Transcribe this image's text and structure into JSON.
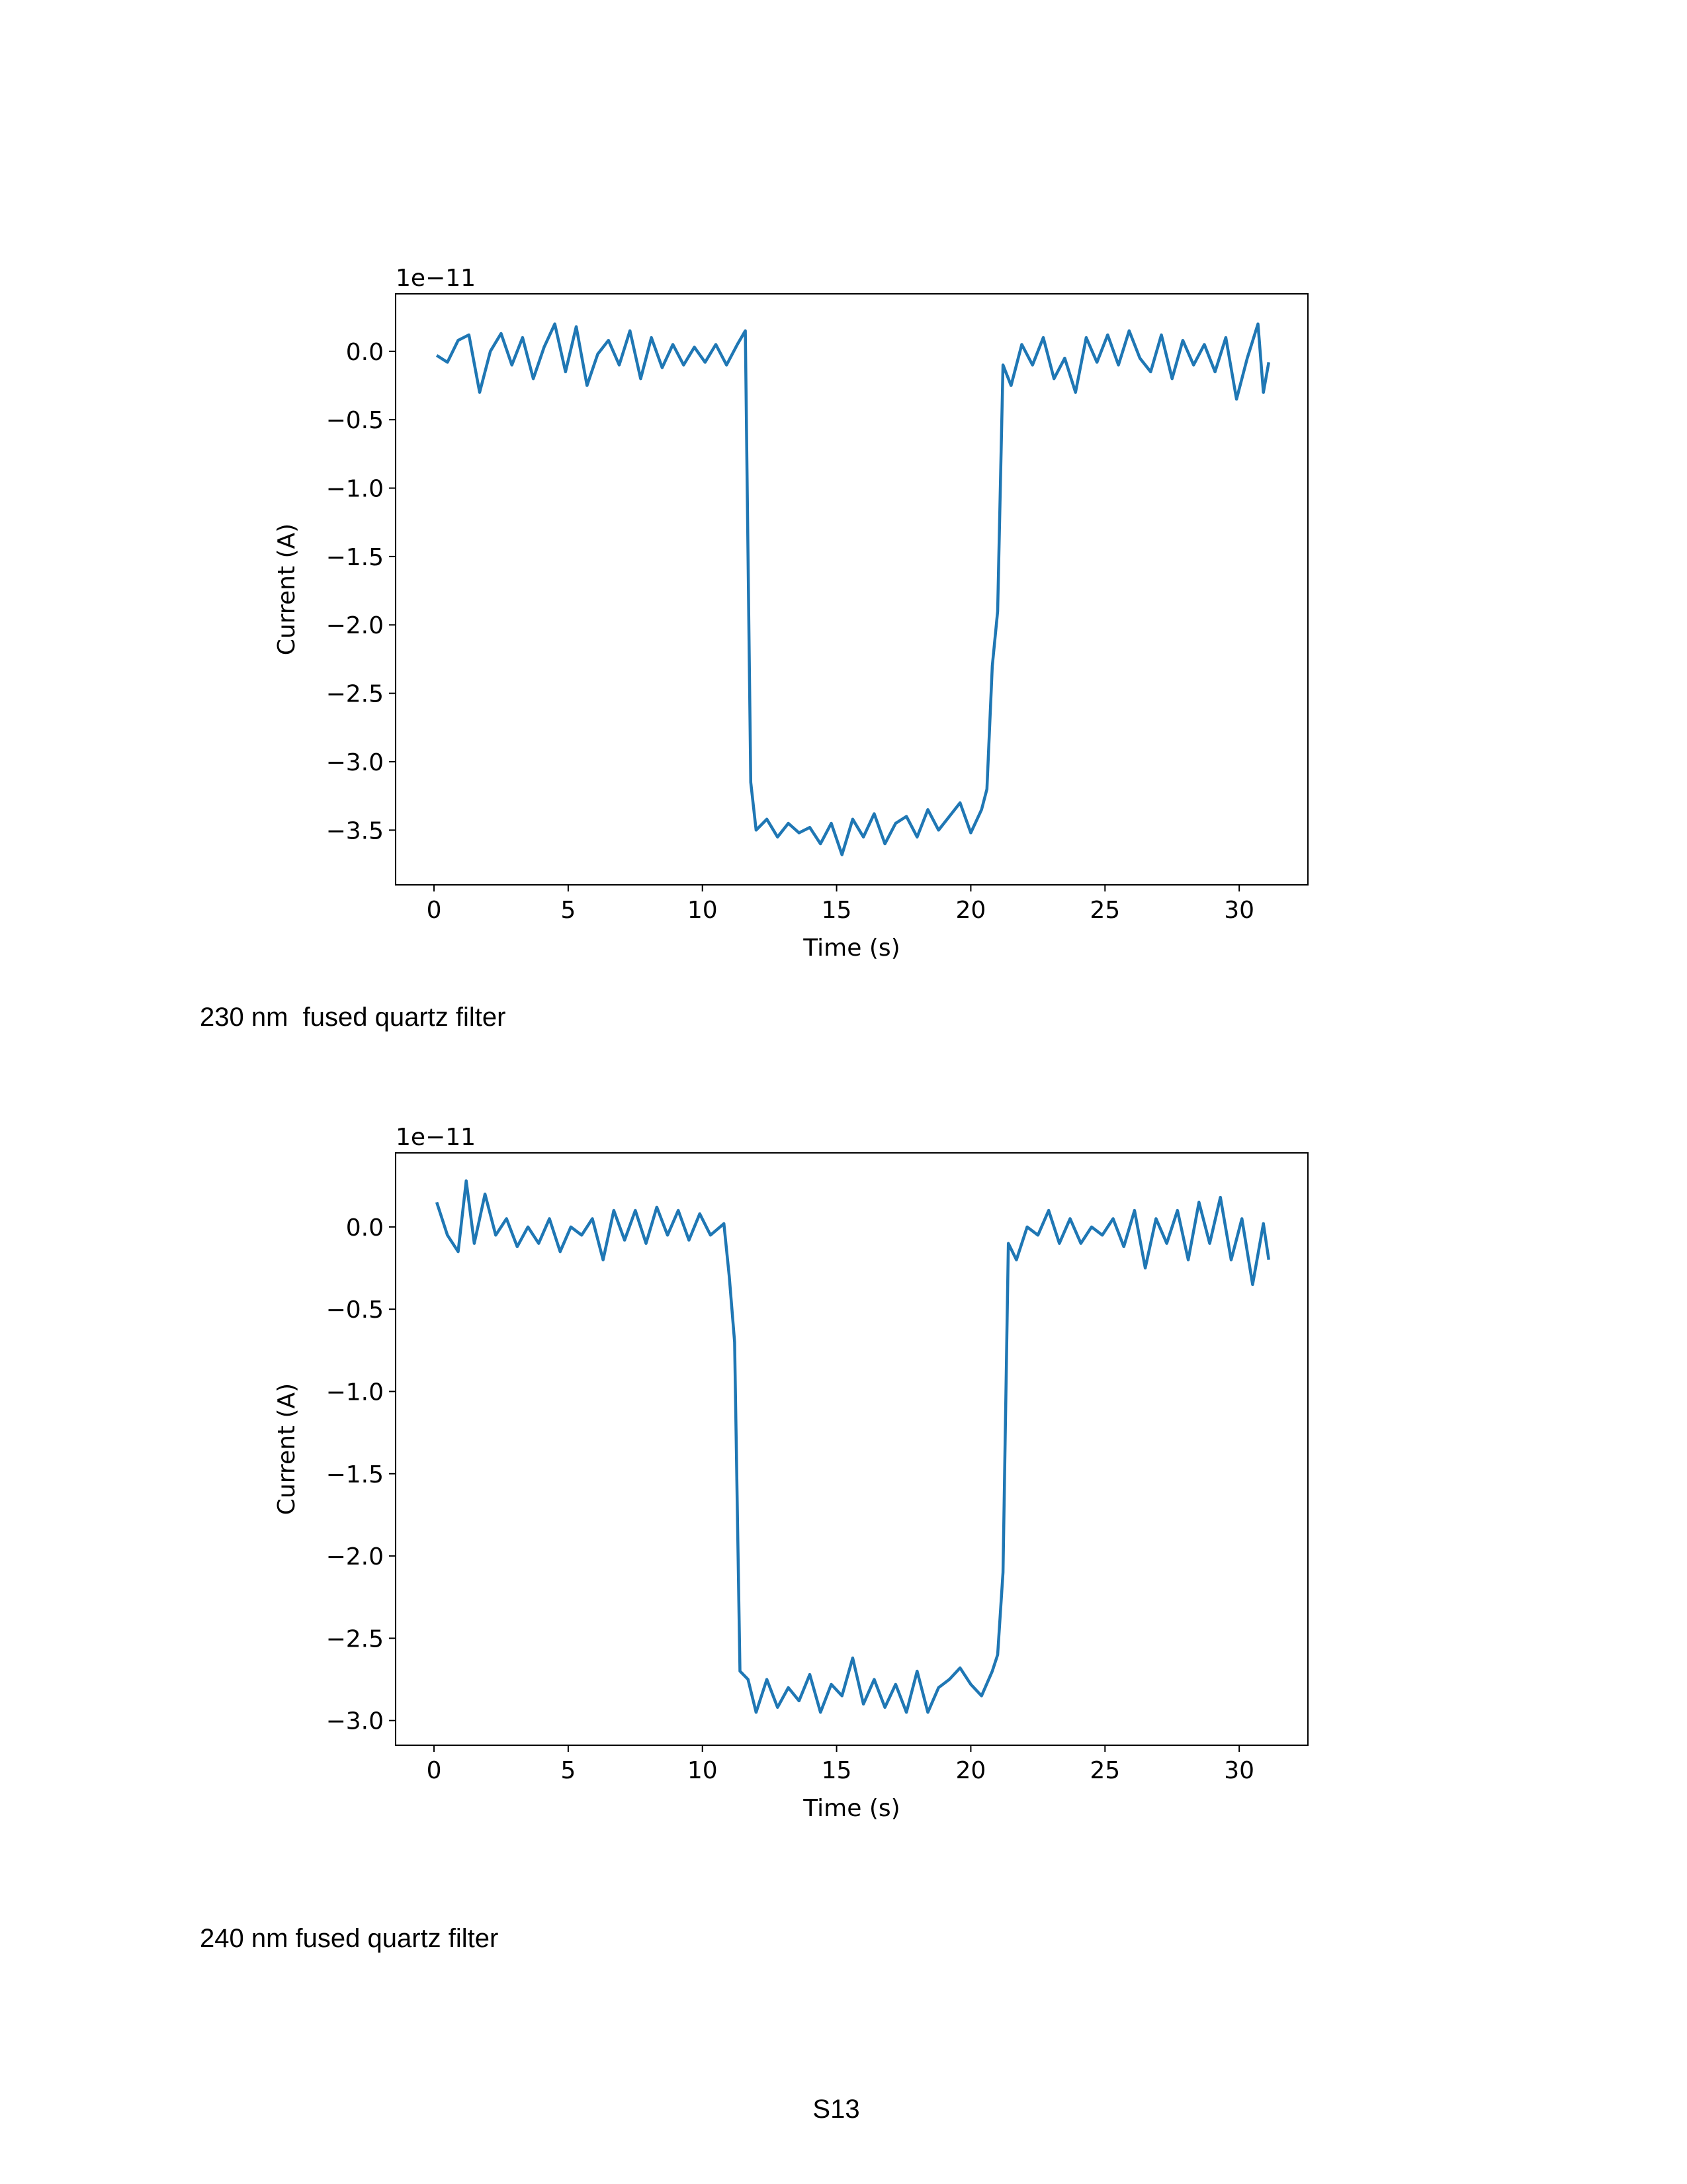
{
  "chart_data": [
    {
      "type": "line",
      "offset_text": "1e−11",
      "xlabel": "Time (s)",
      "ylabel": "Current (A)",
      "color": "#1f77b4",
      "x": [
        0.1,
        0.5,
        0.9,
        1.3,
        1.7,
        2.1,
        2.5,
        2.9,
        3.3,
        3.7,
        4.1,
        4.5,
        4.9,
        5.3,
        5.7,
        6.1,
        6.5,
        6.9,
        7.3,
        7.7,
        8.1,
        8.5,
        8.9,
        9.3,
        9.7,
        10.1,
        10.5,
        10.9,
        11.3,
        11.6,
        11.8,
        12.0,
        12.4,
        12.8,
        13.2,
        13.6,
        14.0,
        14.4,
        14.8,
        15.2,
        15.6,
        16.0,
        16.4,
        16.8,
        17.2,
        17.6,
        18.0,
        18.4,
        18.8,
        19.2,
        19.6,
        20.0,
        20.4,
        20.6,
        20.8,
        21.0,
        21.2,
        21.5,
        21.9,
        22.3,
        22.7,
        23.1,
        23.5,
        23.9,
        24.3,
        24.7,
        25.1,
        25.5,
        25.9,
        26.3,
        26.7,
        27.1,
        27.5,
        27.9,
        28.3,
        28.7,
        29.1,
        29.5,
        29.9,
        30.3,
        30.7,
        30.9,
        31.1
      ],
      "values": [
        -0.03,
        -0.08,
        0.08,
        0.12,
        -0.3,
        0.0,
        0.13,
        -0.1,
        0.1,
        -0.2,
        0.03,
        0.2,
        -0.15,
        0.18,
        -0.25,
        -0.02,
        0.08,
        -0.1,
        0.15,
        -0.2,
        0.1,
        -0.12,
        0.05,
        -0.1,
        0.03,
        -0.08,
        0.05,
        -0.1,
        0.05,
        0.15,
        -3.15,
        -3.5,
        -3.42,
        -3.55,
        -3.45,
        -3.52,
        -3.48,
        -3.6,
        -3.45,
        -3.68,
        -3.42,
        -3.55,
        -3.38,
        -3.6,
        -3.45,
        -3.4,
        -3.55,
        -3.35,
        -3.5,
        -3.4,
        -3.3,
        -3.52,
        -3.35,
        -3.2,
        -2.3,
        -1.9,
        -0.1,
        -0.25,
        0.05,
        -0.1,
        0.1,
        -0.2,
        -0.05,
        -0.3,
        0.1,
        -0.08,
        0.12,
        -0.1,
        0.15,
        -0.05,
        -0.15,
        0.12,
        -0.2,
        0.08,
        -0.1,
        0.05,
        -0.15,
        0.1,
        -0.35,
        -0.05,
        0.2,
        -0.3,
        -0.08
      ],
      "xlim": [
        -1.43,
        32.56
      ],
      "xticks": [
        0,
        5,
        10,
        15,
        20,
        25,
        30
      ],
      "ylim": [
        -3.9,
        0.42
      ],
      "yticks": [
        {
          "value": 0,
          "label": "0.0"
        },
        {
          "value": -0.5,
          "label": "−0.5"
        },
        {
          "value": -1,
          "label": "−1.0"
        },
        {
          "value": -1.5,
          "label": "−1.5"
        },
        {
          "value": -2,
          "label": "−2.0"
        },
        {
          "value": -2.5,
          "label": "−2.5"
        },
        {
          "value": -3,
          "label": "−3.0"
        },
        {
          "value": -3.5,
          "label": "−3.5"
        }
      ]
    },
    {
      "type": "line",
      "offset_text": "1e−11",
      "xlabel": "Time (s)",
      "ylabel": "Current (A)",
      "color": "#1f77b4",
      "x": [
        0.1,
        0.5,
        0.9,
        1.2,
        1.5,
        1.9,
        2.3,
        2.7,
        3.1,
        3.5,
        3.9,
        4.3,
        4.7,
        5.1,
        5.5,
        5.9,
        6.3,
        6.7,
        7.1,
        7.5,
        7.9,
        8.3,
        8.7,
        9.1,
        9.5,
        9.9,
        10.3,
        10.8,
        11.0,
        11.2,
        11.4,
        11.7,
        12.0,
        12.4,
        12.8,
        13.2,
        13.6,
        14.0,
        14.4,
        14.8,
        15.2,
        15.6,
        16.0,
        16.4,
        16.8,
        17.2,
        17.6,
        18.0,
        18.4,
        18.8,
        19.2,
        19.6,
        20.0,
        20.4,
        20.8,
        21.0,
        21.2,
        21.4,
        21.7,
        22.1,
        22.5,
        22.9,
        23.3,
        23.7,
        24.1,
        24.5,
        24.9,
        25.3,
        25.7,
        26.1,
        26.5,
        26.9,
        27.3,
        27.7,
        28.1,
        28.5,
        28.9,
        29.3,
        29.7,
        30.1,
        30.5,
        30.9,
        31.1
      ],
      "values": [
        0.15,
        -0.05,
        -0.15,
        0.28,
        -0.1,
        0.2,
        -0.05,
        0.05,
        -0.12,
        0.0,
        -0.1,
        0.05,
        -0.15,
        0.0,
        -0.05,
        0.05,
        -0.2,
        0.1,
        -0.08,
        0.1,
        -0.1,
        0.12,
        -0.05,
        0.1,
        -0.08,
        0.08,
        -0.05,
        0.02,
        -0.3,
        -0.7,
        -2.7,
        -2.75,
        -2.95,
        -2.75,
        -2.92,
        -2.8,
        -2.88,
        -2.72,
        -2.95,
        -2.78,
        -2.85,
        -2.62,
        -2.9,
        -2.75,
        -2.92,
        -2.78,
        -2.95,
        -2.7,
        -2.95,
        -2.8,
        -2.75,
        -2.68,
        -2.78,
        -2.85,
        -2.7,
        -2.6,
        -2.1,
        -0.1,
        -0.2,
        0.0,
        -0.05,
        0.1,
        -0.1,
        0.05,
        -0.1,
        0.0,
        -0.05,
        0.05,
        -0.12,
        0.1,
        -0.25,
        0.05,
        -0.1,
        0.1,
        -0.2,
        0.15,
        -0.1,
        0.18,
        -0.2,
        0.05,
        -0.35,
        0.02,
        -0.2
      ],
      "xlim": [
        -1.43,
        32.56
      ],
      "xticks": [
        0,
        5,
        10,
        15,
        20,
        25,
        30
      ],
      "ylim": [
        -3.15,
        0.45
      ],
      "yticks": [
        {
          "value": 0,
          "label": "0.0"
        },
        {
          "value": -0.5,
          "label": "−0.5"
        },
        {
          "value": -1,
          "label": "−1.0"
        },
        {
          "value": -1.5,
          "label": "−1.5"
        },
        {
          "value": -2,
          "label": "−2.0"
        },
        {
          "value": -2.5,
          "label": "−2.5"
        },
        {
          "value": -3,
          "label": "−3.0"
        }
      ]
    }
  ],
  "captions": [
    "230 nm  fused quartz filter",
    "240 nm fused quartz filter"
  ],
  "page_label": "S13"
}
